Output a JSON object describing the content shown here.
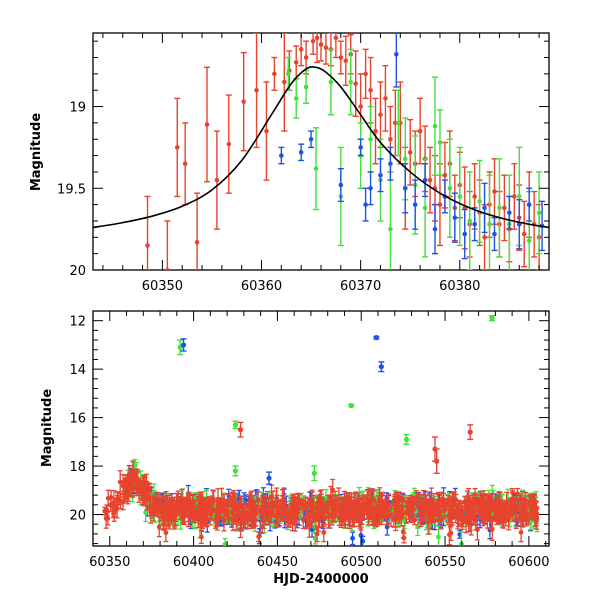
{
  "chart_data": [
    {
      "type": "scatter",
      "panel": "top",
      "title": "",
      "xlabel": "",
      "ylabel": "Magnitude",
      "xlim": [
        60343,
        60389
      ],
      "ylim": [
        20.0,
        18.55
      ],
      "y_inverted": true,
      "x_ticks": [
        60350,
        60360,
        60370,
        60380
      ],
      "y_ticks": [
        19,
        19.5,
        20
      ],
      "x_tick_labels": [
        "60350",
        "60360",
        "60370",
        "60380"
      ],
      "y_tick_labels": [
        "19",
        "19.5",
        "20"
      ],
      "grid": false,
      "legend": "none",
      "model_curve": {
        "color": "#000000",
        "points": [
          [
            60343,
            19.74
          ],
          [
            60346,
            19.71
          ],
          [
            60349,
            19.67
          ],
          [
            60352,
            19.61
          ],
          [
            60355,
            19.51
          ],
          [
            60358,
            19.33
          ],
          [
            60361,
            19.05
          ],
          [
            60363,
            18.86
          ],
          [
            60364.5,
            18.77
          ],
          [
            60365.5,
            18.76
          ],
          [
            60366.5,
            18.79
          ],
          [
            60368,
            18.88
          ],
          [
            60370,
            19.05
          ],
          [
            60372,
            19.22
          ],
          [
            60375,
            19.4
          ],
          [
            60378,
            19.53
          ],
          [
            60381,
            19.62
          ],
          [
            60384,
            19.68
          ],
          [
            60387,
            19.72
          ],
          [
            60389,
            19.74
          ]
        ]
      },
      "series": [
        {
          "color": "#e8432f",
          "points": [
            [
              60348.5,
              19.85,
              0.3
            ],
            [
              60350.5,
              20.0,
              0.3
            ],
            [
              60351.5,
              19.25,
              0.3
            ],
            [
              60352.3,
              19.35,
              0.25
            ],
            [
              60353.5,
              19.83,
              0.3
            ],
            [
              60354.5,
              19.11,
              0.35
            ],
            [
              60355.5,
              19.45,
              0.3
            ],
            [
              60356.7,
              19.23,
              0.3
            ],
            [
              60358.2,
              18.97,
              0.3
            ],
            [
              60359.5,
              18.9,
              0.35
            ],
            [
              60360.5,
              19.15,
              0.3
            ],
            [
              60361.3,
              18.8,
              0.1
            ],
            [
              60362.3,
              18.85,
              0.3
            ],
            [
              60362.8,
              18.78,
              0.12
            ],
            [
              60363.5,
              18.73,
              0.1
            ],
            [
              60364.0,
              18.65,
              0.1
            ],
            [
              60364.5,
              18.7,
              0.1
            ],
            [
              60365.2,
              18.6,
              0.08
            ],
            [
              60365.6,
              18.58,
              0.15
            ],
            [
              60366.0,
              18.62,
              0.1
            ],
            [
              60366.5,
              18.64,
              0.1
            ],
            [
              60367.0,
              18.65,
              0.1
            ],
            [
              60367.5,
              18.58,
              0.12
            ],
            [
              60368.0,
              18.7,
              0.1
            ],
            [
              60368.5,
              18.72,
              0.15
            ],
            [
              60369.0,
              18.68,
              0.12
            ],
            [
              60369.5,
              18.86,
              0.2
            ],
            [
              60370.0,
              19.0,
              0.2
            ],
            [
              60370.5,
              18.8,
              0.15
            ],
            [
              60371.0,
              18.9,
              0.2
            ],
            [
              60371.5,
              19.15,
              0.2
            ],
            [
              60372.0,
              19.05,
              0.2
            ],
            [
              60372.5,
              18.95,
              0.2
            ],
            [
              60373.0,
              19.2,
              0.2
            ],
            [
              60373.5,
              19.1,
              0.2
            ],
            [
              60374.0,
              19.1,
              0.25
            ],
            [
              60374.5,
              19.5,
              0.25
            ],
            [
              60375.0,
              19.28,
              0.2
            ],
            [
              60375.5,
              19.35,
              0.2
            ],
            [
              60376.0,
              19.15,
              0.2
            ],
            [
              60376.5,
              19.32,
              0.2
            ],
            [
              60377.0,
              19.45,
              0.2
            ],
            [
              60377.5,
              19.5,
              0.2
            ],
            [
              60378.0,
              19.6,
              0.25
            ],
            [
              60378.5,
              19.42,
              0.2
            ],
            [
              60379.0,
              19.35,
              0.2
            ],
            [
              60379.5,
              19.62,
              0.2
            ],
            [
              60380.0,
              19.48,
              0.2
            ],
            [
              60380.5,
              19.62,
              0.25
            ],
            [
              60381.0,
              19.72,
              0.2
            ],
            [
              60381.5,
              19.55,
              0.2
            ],
            [
              60382.0,
              19.65,
              0.2
            ],
            [
              60382.5,
              19.8,
              0.2
            ],
            [
              60383.0,
              19.6,
              0.2
            ],
            [
              60383.5,
              19.52,
              0.2
            ],
            [
              60384.0,
              19.72,
              0.2
            ],
            [
              60384.5,
              19.62,
              0.2
            ],
            [
              60385.0,
              19.75,
              0.2
            ],
            [
              60385.5,
              19.55,
              0.2
            ],
            [
              60386.0,
              19.68,
              0.2
            ],
            [
              60386.5,
              19.78,
              0.2
            ],
            [
              60387.0,
              19.6,
              0.2
            ],
            [
              60387.5,
              19.72,
              0.2
            ],
            [
              60388.0,
              19.8,
              0.2
            ]
          ]
        },
        {
          "color": "#44e03c",
          "points": [
            [
              60362.7,
              18.8,
              0.1
            ],
            [
              60363.5,
              18.95,
              0.12
            ],
            [
              60364.5,
              18.88,
              0.1
            ],
            [
              60365.5,
              19.38,
              0.25
            ],
            [
              60367.0,
              18.85,
              0.2
            ],
            [
              60368.0,
              19.55,
              0.3
            ],
            [
              60369.0,
              18.85,
              0.2
            ],
            [
              60370.0,
              19.3,
              0.2
            ],
            [
              60371.0,
              19.2,
              0.2
            ],
            [
              60372.0,
              19.45,
              0.25
            ],
            [
              60373.0,
              19.75,
              0.35
            ],
            [
              60373.8,
              19.1,
              0.2
            ],
            [
              60374.5,
              19.32,
              0.25
            ],
            [
              60375.5,
              19.48,
              0.3
            ],
            [
              60376.5,
              19.62,
              0.3
            ],
            [
              60377.5,
              19.12,
              0.3
            ],
            [
              60378.0,
              19.22,
              0.2
            ],
            [
              60379.0,
              19.5,
              0.3
            ],
            [
              60380.0,
              19.55,
              0.3
            ],
            [
              60381.0,
              19.7,
              0.3
            ],
            [
              60382.0,
              19.58,
              0.25
            ],
            [
              60383.0,
              19.72,
              0.3
            ],
            [
              60384.0,
              19.62,
              0.3
            ],
            [
              60385.0,
              19.72,
              0.3
            ],
            [
              60386.0,
              19.55,
              0.3
            ],
            [
              60387.0,
              19.82,
              0.3
            ],
            [
              60388.0,
              19.65,
              0.25
            ]
          ]
        },
        {
          "color": "#2152e8",
          "points": [
            [
              60362.0,
              19.3,
              0.05
            ],
            [
              60364.0,
              19.28,
              0.05
            ],
            [
              60365.0,
              19.2,
              0.05
            ],
            [
              60368.0,
              19.48,
              0.1
            ],
            [
              60370.0,
              19.25,
              0.05
            ],
            [
              60370.5,
              19.6,
              0.1
            ],
            [
              60371.0,
              19.5,
              0.1
            ],
            [
              60372.0,
              19.42,
              0.1
            ],
            [
              60373.0,
              19.35,
              0.1
            ],
            [
              60373.6,
              18.68,
              0.2
            ],
            [
              60374.5,
              19.5,
              0.15
            ],
            [
              60375.5,
              19.6,
              0.15
            ],
            [
              60376.5,
              19.45,
              0.1
            ],
            [
              60377.5,
              19.75,
              0.15
            ],
            [
              60378.5,
              19.55,
              0.1
            ],
            [
              60379.5,
              19.68,
              0.15
            ],
            [
              60380.5,
              19.78,
              0.15
            ],
            [
              60381.5,
              19.72,
              0.1
            ],
            [
              60382.5,
              19.62,
              0.15
            ],
            [
              60383.5,
              19.78,
              0.1
            ],
            [
              60385.0,
              19.65,
              0.1
            ],
            [
              60386.0,
              19.72,
              0.15
            ],
            [
              60387.0,
              19.6,
              0.1
            ],
            [
              60388.3,
              19.73,
              0.15
            ]
          ]
        }
      ]
    },
    {
      "type": "scatter",
      "panel": "bottom",
      "title": "",
      "xlabel": "HJD-2400000",
      "ylabel": "Magnitude",
      "xlim": [
        60340,
        60612
      ],
      "ylim": [
        21.3,
        11.6
      ],
      "y_inverted": true,
      "x_ticks": [
        60350,
        60400,
        60450,
        60500,
        60550,
        60600
      ],
      "y_ticks": [
        12,
        14,
        16,
        18,
        20
      ],
      "x_tick_labels": [
        "60350",
        "60400",
        "60450",
        "60500",
        "60550",
        "60600"
      ],
      "y_tick_labels": [
        "12",
        "14",
        "16",
        "18",
        "20"
      ],
      "grid": false,
      "legend": "none",
      "series": [
        {
          "color": "#44e03c",
          "outliers": [
            [
              60392,
              13.1,
              0.3
            ],
            [
              60425,
              16.3,
              0.15
            ],
            [
              60425,
              18.2,
              0.2
            ],
            [
              60472,
              18.3,
              0.3
            ],
            [
              60494,
              15.5,
              0.05
            ],
            [
              60527,
              16.9,
              0.2
            ],
            [
              60578,
              11.9,
              0.1
            ]
          ]
        },
        {
          "color": "#2152e8",
          "outliers": [
            [
              60394,
              13.0,
              0.25
            ],
            [
              60509,
              12.7,
              0.05
            ],
            [
              60512,
              13.9,
              0.2
            ],
            [
              60445,
              18.5,
              0.25
            ]
          ]
        },
        {
          "color": "#e8432f",
          "outliers": [
            [
              60428,
              16.5,
              0.3
            ],
            [
              60544,
              17.3,
              0.5
            ],
            [
              60545,
              17.8,
              0.5
            ],
            [
              60565,
              16.6,
              0.3
            ]
          ]
        }
      ],
      "bulk": {
        "x_range": [
          60347,
          60605
        ],
        "outburst_peak_x": 60365,
        "outburst_peak_y": 18.6,
        "baseline_y": 19.8
      }
    }
  ]
}
